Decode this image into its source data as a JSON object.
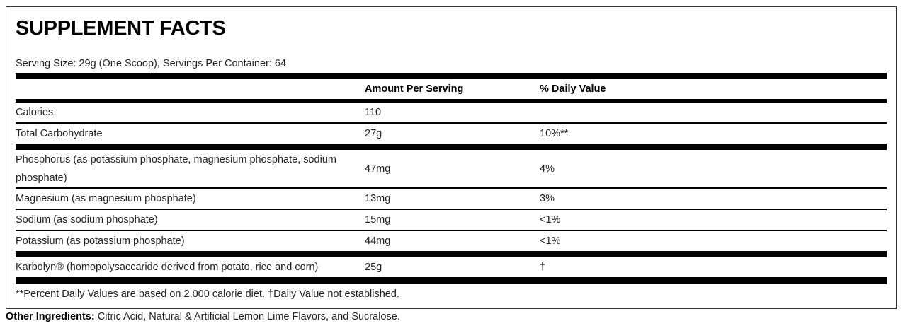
{
  "title": "SUPPLEMENT FACTS",
  "serving": "Serving Size: 29g (One Scoop), Servings Per Container: 64",
  "header": {
    "amount": "Amount Per Serving",
    "dv": "% Daily Value"
  },
  "rows": [
    {
      "name": "Calories",
      "amount": "110",
      "dv": ""
    },
    {
      "name": "Total Carbohydrate",
      "amount": "27g",
      "dv": "10%**"
    },
    {
      "name": "Phosphorus (as potassium phosphate, magnesium phosphate, sodium phosphate)",
      "amount": "47mg",
      "dv": "4%"
    },
    {
      "name": "Magnesium (as magnesium phosphate)",
      "amount": "13mg",
      "dv": "3%"
    },
    {
      "name": "Sodium (as sodium phosphate)",
      "amount": "15mg",
      "dv": "<1%"
    },
    {
      "name": "Potassium (as potassium phosphate)",
      "amount": "44mg",
      "dv": "<1%"
    },
    {
      "name": "Karbolyn® (homopolysaccaride derived from potato, rice and corn)",
      "amount": "25g",
      "dv": "†"
    }
  ],
  "footnote": "**Percent Daily Values are based on 2,000 calorie diet. †Daily Value not established.",
  "other": {
    "label": "Other Ingredients:",
    "text": " Citric Acid, Natural & Artificial Lemon Lime Flavors, and Sucralose."
  }
}
